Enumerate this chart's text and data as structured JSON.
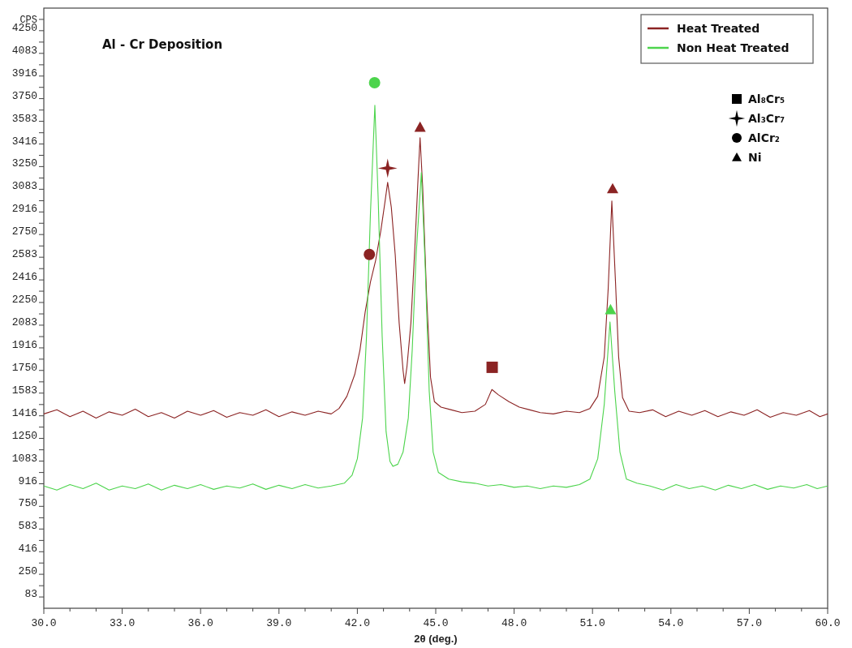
{
  "chart_data": {
    "type": "line",
    "title": "Al - Cr Deposition",
    "xlabel": "2θ (deg.)",
    "ylabel": "CPS",
    "xlim": [
      30,
      60
    ],
    "ylim": [
      0,
      4416
    ],
    "xticks": [
      {
        "value": 30,
        "label": "30.0"
      },
      {
        "value": 31,
        "label": null
      },
      {
        "value": 32,
        "label": null
      },
      {
        "value": 33,
        "label": "33.0"
      },
      {
        "value": 34,
        "label": null
      },
      {
        "value": 35,
        "label": null
      },
      {
        "value": 36,
        "label": "36.0"
      },
      {
        "value": 37,
        "label": null
      },
      {
        "value": 38,
        "label": null
      },
      {
        "value": 39,
        "label": "39.0"
      },
      {
        "value": 40,
        "label": null
      },
      {
        "value": 41,
        "label": null
      },
      {
        "value": 42,
        "label": "42.0"
      },
      {
        "value": 43,
        "label": null
      },
      {
        "value": 44,
        "label": null
      },
      {
        "value": 45,
        "label": "45.0"
      },
      {
        "value": 46,
        "label": null
      },
      {
        "value": 47,
        "label": null
      },
      {
        "value": 48,
        "label": "48.0"
      },
      {
        "value": 49,
        "label": null
      },
      {
        "value": 50,
        "label": null
      },
      {
        "value": 51,
        "label": "51.0"
      },
      {
        "value": 52,
        "label": null
      },
      {
        "value": 53,
        "label": null
      },
      {
        "value": 54,
        "label": "54.0"
      },
      {
        "value": 55,
        "label": null
      },
      {
        "value": 56,
        "label": null
      },
      {
        "value": 57,
        "label": "57.0"
      },
      {
        "value": 58,
        "label": null
      },
      {
        "value": 59,
        "label": null
      },
      {
        "value": 60,
        "label": "60.0"
      }
    ],
    "yticks": [
      83,
      250,
      416,
      583,
      750,
      916,
      1083,
      1250,
      1416,
      1583,
      1750,
      1916,
      2083,
      2250,
      2416,
      2583,
      2750,
      2916,
      3083,
      3250,
      3416,
      3583,
      3750,
      3916,
      4083,
      4250
    ],
    "grid": false,
    "annotations": [
      "Al₈Cr₅",
      "Al₃Cr₇",
      "AlCr₂",
      "Ni"
    ],
    "legend": "top right",
    "line_style": "solid",
    "series": [
      {
        "name": "Heat Treated",
        "color": "#8b2323",
        "x": [
          30.0,
          30.5,
          31.0,
          31.5,
          32.0,
          32.5,
          33.0,
          33.5,
          34.0,
          34.5,
          35.0,
          35.5,
          36.0,
          36.5,
          37.0,
          37.5,
          38.0,
          38.5,
          39.0,
          39.5,
          40.0,
          40.5,
          41.0,
          41.3,
          41.6,
          41.9,
          42.1,
          42.3,
          42.5,
          42.7,
          42.9,
          43.05,
          43.16,
          43.3,
          43.45,
          43.6,
          43.75,
          43.81,
          43.9,
          44.05,
          44.2,
          44.32,
          44.4,
          44.5,
          44.65,
          44.8,
          44.95,
          45.2,
          45.6,
          46.0,
          46.5,
          46.9,
          47.15,
          47.4,
          47.8,
          48.2,
          48.6,
          49.0,
          49.5,
          50.0,
          50.5,
          50.9,
          51.2,
          51.45,
          51.6,
          51.74,
          51.88,
          52.0,
          52.15,
          52.4,
          52.8,
          53.3,
          53.8,
          54.3,
          54.8,
          55.3,
          55.8,
          56.3,
          56.8,
          57.3,
          57.8,
          58.3,
          58.8,
          59.3,
          59.7,
          60.0
        ],
        "values": [
          1430,
          1460,
          1410,
          1450,
          1400,
          1445,
          1420,
          1465,
          1410,
          1440,
          1400,
          1450,
          1420,
          1455,
          1405,
          1440,
          1420,
          1460,
          1410,
          1445,
          1420,
          1450,
          1430,
          1470,
          1560,
          1720,
          1900,
          2180,
          2400,
          2560,
          2780,
          2980,
          3134,
          2950,
          2600,
          2100,
          1750,
          1654,
          1780,
          2100,
          2650,
          3150,
          3463,
          3100,
          2300,
          1700,
          1520,
          1480,
          1460,
          1440,
          1450,
          1500,
          1610,
          1570,
          1520,
          1480,
          1460,
          1440,
          1430,
          1450,
          1440,
          1470,
          1560,
          1850,
          2350,
          2997,
          2400,
          1850,
          1550,
          1450,
          1440,
          1460,
          1410,
          1450,
          1420,
          1455,
          1410,
          1445,
          1420,
          1460,
          1405,
          1440,
          1420,
          1455,
          1410,
          1430
        ]
      },
      {
        "name": "Non Heat Treated",
        "color": "#4cd44c",
        "x": [
          30.0,
          30.5,
          31.0,
          31.5,
          32.0,
          32.5,
          33.0,
          33.5,
          34.0,
          34.5,
          35.0,
          35.5,
          36.0,
          36.5,
          37.0,
          37.5,
          38.0,
          38.5,
          39.0,
          39.5,
          40.0,
          40.5,
          41.0,
          41.5,
          41.8,
          42.0,
          42.2,
          42.35,
          42.5,
          42.67,
          42.8,
          42.95,
          43.1,
          43.25,
          43.36,
          43.55,
          43.75,
          43.95,
          44.1,
          44.25,
          44.45,
          44.6,
          44.75,
          44.9,
          45.1,
          45.5,
          46.0,
          46.5,
          47.0,
          47.5,
          48.0,
          48.5,
          49.0,
          49.5,
          50.0,
          50.5,
          50.9,
          51.2,
          51.45,
          51.67,
          51.85,
          52.05,
          52.3,
          52.7,
          53.2,
          53.7,
          54.2,
          54.7,
          55.2,
          55.7,
          56.2,
          56.7,
          57.2,
          57.7,
          58.2,
          58.7,
          59.2,
          59.6,
          60.0
        ],
        "values": [
          900,
          870,
          910,
          880,
          920,
          870,
          900,
          880,
          915,
          870,
          905,
          880,
          910,
          875,
          900,
          885,
          915,
          875,
          905,
          880,
          910,
          885,
          900,
          920,
          980,
          1100,
          1400,
          2000,
          2900,
          3701,
          3000,
          2000,
          1300,
          1080,
          1045,
          1060,
          1150,
          1400,
          1900,
          2600,
          3206,
          2500,
          1600,
          1150,
          1000,
          950,
          930,
          920,
          900,
          910,
          890,
          900,
          880,
          900,
          890,
          910,
          950,
          1100,
          1500,
          2107,
          1600,
          1150,
          950,
          920,
          900,
          870,
          910,
          880,
          900,
          870,
          905,
          880,
          910,
          875,
          900,
          885,
          910,
          880,
          900
        ]
      },
      {
        "type": "scatter",
        "marker": "square",
        "color": "#000000",
        "x": [
          47.16
        ],
        "values": [
          1773
        ],
        "colors": [
          "#8b2323"
        ]
      },
      {
        "type": "scatter",
        "marker": "star",
        "color": "#000000",
        "x": [
          43.16
        ],
        "values": [
          3238
        ],
        "colors": [
          "#8b2323"
        ]
      },
      {
        "type": "scatter",
        "marker": "circle",
        "color": "#000000",
        "x": [
          42.66,
          42.46
        ],
        "values": [
          3867,
          2603
        ],
        "colors": [
          "#4cd44c",
          "#8b2323"
        ]
      },
      {
        "type": "scatter",
        "marker": "triangle",
        "color": "#000000",
        "x": [
          44.4,
          51.77,
          51.69
        ],
        "values": [
          3540,
          3087,
          2197
        ],
        "colors": [
          "#8b2323",
          "#8b2323",
          "#4cd44c"
        ]
      }
    ]
  }
}
